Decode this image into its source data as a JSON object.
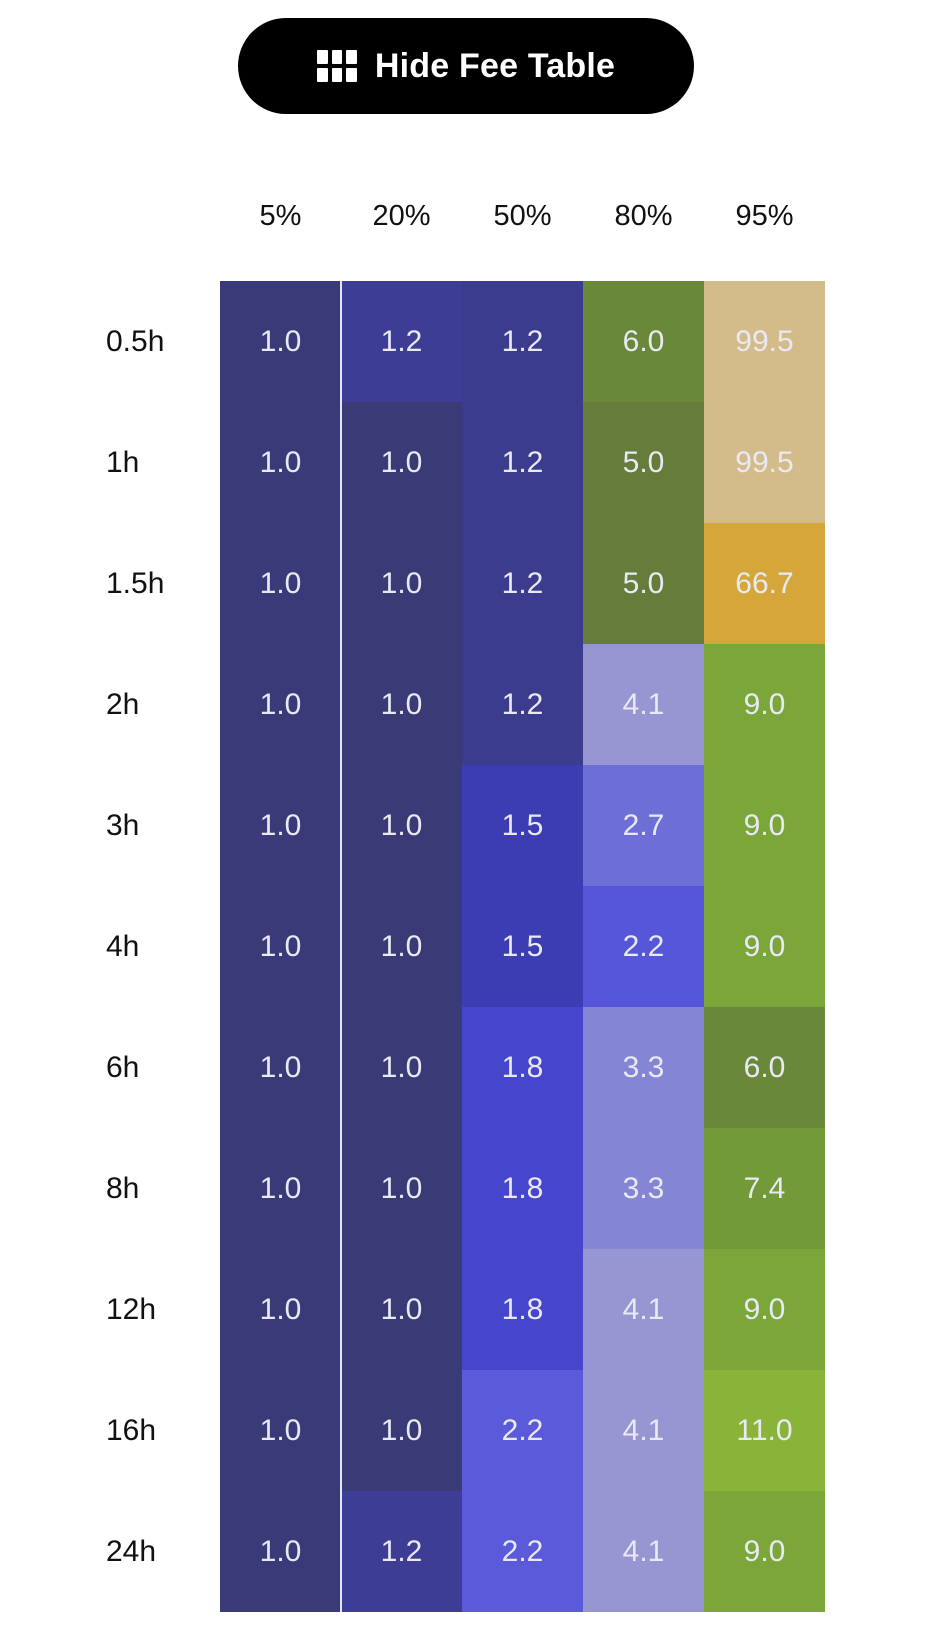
{
  "toggle": {
    "label": "Hide Fee Table",
    "icon": "grid-icon"
  },
  "fee_table": {
    "columns": [
      "5%",
      "20%",
      "50%",
      "80%",
      "95%"
    ],
    "rows": [
      {
        "label": "0.5h",
        "values": [
          "1.0",
          "1.2",
          "1.2",
          "6.0",
          "99.5"
        ],
        "colors": [
          "#3a3a78",
          "#3d3d95",
          "#3c3c8e",
          "#6a8839",
          "#d4bc8a"
        ]
      },
      {
        "label": "1h",
        "values": [
          "1.0",
          "1.0",
          "1.2",
          "5.0",
          "99.5"
        ],
        "colors": [
          "#3a3a78",
          "#3a3a77",
          "#3c3c8e",
          "#667c3a",
          "#d4bc8a"
        ]
      },
      {
        "label": "1.5h",
        "values": [
          "1.0",
          "1.0",
          "1.2",
          "5.0",
          "66.7"
        ],
        "colors": [
          "#3a3a78",
          "#3a3a77",
          "#3c3c8e",
          "#667c3a",
          "#d5a73a"
        ]
      },
      {
        "label": "2h",
        "values": [
          "1.0",
          "1.0",
          "1.2",
          "4.1",
          "9.0"
        ],
        "colors": [
          "#3a3a78",
          "#3a3a77",
          "#3c3c8e",
          "#9796d2",
          "#7ba63a"
        ]
      },
      {
        "label": "3h",
        "values": [
          "1.0",
          "1.0",
          "1.5",
          "2.7",
          "9.0"
        ],
        "colors": [
          "#3a3a78",
          "#3a3a77",
          "#3d3db3",
          "#6d6fd6",
          "#7ba63a"
        ]
      },
      {
        "label": "4h",
        "values": [
          "1.0",
          "1.0",
          "1.5",
          "2.2",
          "9.0"
        ],
        "colors": [
          "#3a3a78",
          "#3a3a77",
          "#3d3db3",
          "#5656db",
          "#7ba63a"
        ]
      },
      {
        "label": "6h",
        "values": [
          "1.0",
          "1.0",
          "1.8",
          "3.3",
          "6.0"
        ],
        "colors": [
          "#3a3a78",
          "#3a3a77",
          "#4646cc",
          "#8485d4",
          "#6a8839"
        ]
      },
      {
        "label": "8h",
        "values": [
          "1.0",
          "1.0",
          "1.8",
          "3.3",
          "7.4"
        ],
        "colors": [
          "#3a3a78",
          "#3a3a77",
          "#4646cc",
          "#8485d4",
          "#739a38"
        ]
      },
      {
        "label": "12h",
        "values": [
          "1.0",
          "1.0",
          "1.8",
          "4.1",
          "9.0"
        ],
        "colors": [
          "#3a3a78",
          "#3a3a77",
          "#4646cc",
          "#9796d2",
          "#7ba63a"
        ]
      },
      {
        "label": "16h",
        "values": [
          "1.0",
          "1.0",
          "2.2",
          "4.1",
          "11.0"
        ],
        "colors": [
          "#3a3a78",
          "#3a3a77",
          "#5a5adb",
          "#9796d2",
          "#8ab439"
        ]
      },
      {
        "label": "24h",
        "values": [
          "1.0",
          "1.2",
          "2.2",
          "4.1",
          "9.0"
        ],
        "colors": [
          "#3a3a78",
          "#3d3d95",
          "#5a5adb",
          "#9796d2",
          "#7ba63a"
        ]
      }
    ]
  }
}
